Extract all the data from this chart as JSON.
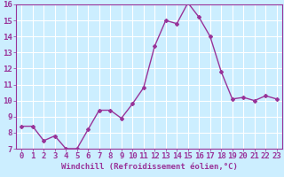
{
  "x": [
    0,
    1,
    2,
    3,
    4,
    5,
    6,
    7,
    8,
    9,
    10,
    11,
    12,
    13,
    14,
    15,
    16,
    17,
    18,
    19,
    20,
    21,
    22,
    23
  ],
  "y": [
    8.4,
    8.4,
    7.5,
    7.8,
    7.0,
    7.0,
    8.2,
    9.4,
    9.4,
    8.9,
    9.8,
    10.8,
    13.4,
    15.0,
    14.8,
    16.1,
    15.2,
    14.0,
    11.8,
    10.1,
    10.2,
    10.0,
    10.3,
    10.1
  ],
  "line_color": "#993399",
  "marker": "D",
  "marker_size": 2,
  "line_width": 1.0,
  "xlabel": "Windchill (Refroidissement éolien,°C)",
  "xlim": [
    -0.5,
    23.5
  ],
  "ylim": [
    7,
    16
  ],
  "yticks": [
    7,
    8,
    9,
    10,
    11,
    12,
    13,
    14,
    15,
    16
  ],
  "xticks": [
    0,
    1,
    2,
    3,
    4,
    5,
    6,
    7,
    8,
    9,
    10,
    11,
    12,
    13,
    14,
    15,
    16,
    17,
    18,
    19,
    20,
    21,
    22,
    23
  ],
  "bg_color": "#cceeff",
  "grid_color": "#ffffff",
  "tick_color": "#993399",
  "label_color": "#993399",
  "xlabel_fontsize": 6.5,
  "tick_fontsize": 6.5,
  "spine_color": "#993399"
}
